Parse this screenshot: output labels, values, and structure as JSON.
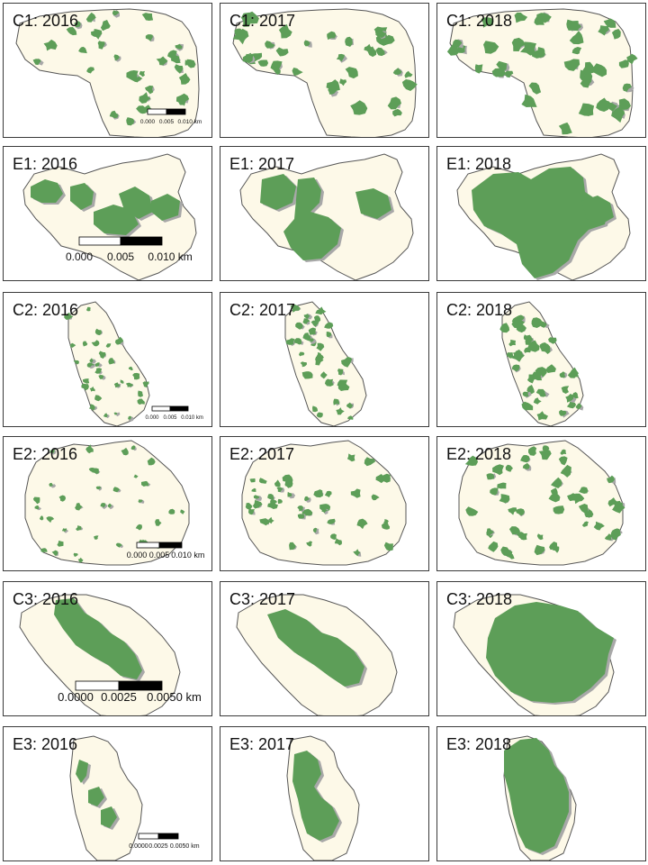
{
  "colors": {
    "boundary_fill": "#fdf9e8",
    "boundary_stroke": "#555555",
    "cover_recent": "#5d9e58",
    "cover_prior": "#a8a8a8"
  },
  "panels": [
    {
      "label": "C1: 2016"
    },
    {
      "label": "C1: 2017"
    },
    {
      "label": "C1: 2018"
    },
    {
      "label": "E1: 2016"
    },
    {
      "label": "E1: 2017"
    },
    {
      "label": "E1: 2018"
    },
    {
      "label": "C2: 2016"
    },
    {
      "label": "C2: 2017"
    },
    {
      "label": "C2: 2018"
    },
    {
      "label": "E2: 2016"
    },
    {
      "label": "E2: 2017"
    },
    {
      "label": "E2: 2018"
    },
    {
      "label": "C3: 2016"
    },
    {
      "label": "C3: 2017"
    },
    {
      "label": "C3: 2018"
    },
    {
      "label": "E3: 2016"
    },
    {
      "label": "E3: 2017"
    },
    {
      "label": "E3: 2018"
    }
  ],
  "scalebars": [
    {
      "site": "C1",
      "labels": [
        "0.000",
        "0.005",
        "0.010 km"
      ]
    },
    {
      "site": "E1",
      "labels": [
        "0.000",
        "0.005",
        "0.010 km"
      ]
    },
    {
      "site": "C2",
      "labels": [
        "0.000",
        "0.005",
        "0.010 km"
      ]
    },
    {
      "site": "E2",
      "labels": [
        "0.000",
        "0.005",
        "0.010 km"
      ]
    },
    {
      "site": "C3",
      "labels": [
        "0.0000",
        "0.0025",
        "0.0050 km"
      ]
    },
    {
      "site": "E3",
      "labels": [
        "0.0000",
        "0.0025",
        "0.0050 km"
      ]
    }
  ]
}
